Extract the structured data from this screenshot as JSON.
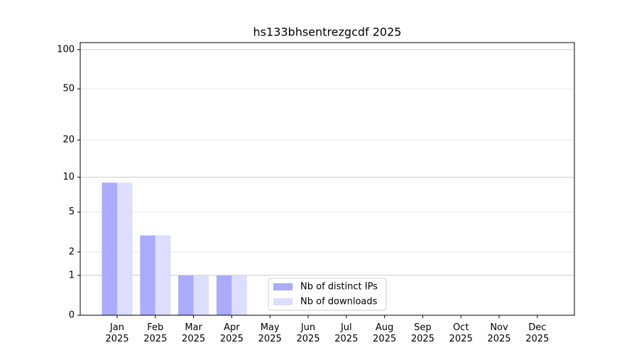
{
  "chart_data": {
    "type": "bar",
    "title": "hs133bhsentrezgcdf 2025",
    "categories": [
      "Jan 2025",
      "Feb 2025",
      "Mar 2025",
      "Apr 2025",
      "May 2025",
      "Jun 2025",
      "Jul 2025",
      "Aug 2025",
      "Sep 2025",
      "Oct 2025",
      "Nov 2025",
      "Dec 2025"
    ],
    "series": [
      {
        "name": "Nb of distinct IPs",
        "color": "#aaaaff",
        "values": [
          9,
          3,
          1,
          1,
          0,
          0,
          0,
          0,
          0,
          0,
          0,
          0
        ]
      },
      {
        "name": "Nb of downloads",
        "color": "#ddddff",
        "values": [
          9,
          3,
          1,
          1,
          0,
          0,
          0,
          0,
          0,
          0,
          0,
          0
        ]
      }
    ],
    "yscale": "symlog",
    "ylim": [
      0,
      113
    ],
    "yticks": [
      0,
      1,
      2,
      5,
      10,
      20,
      50,
      100
    ],
    "grid": true,
    "legend": "lower center"
  }
}
